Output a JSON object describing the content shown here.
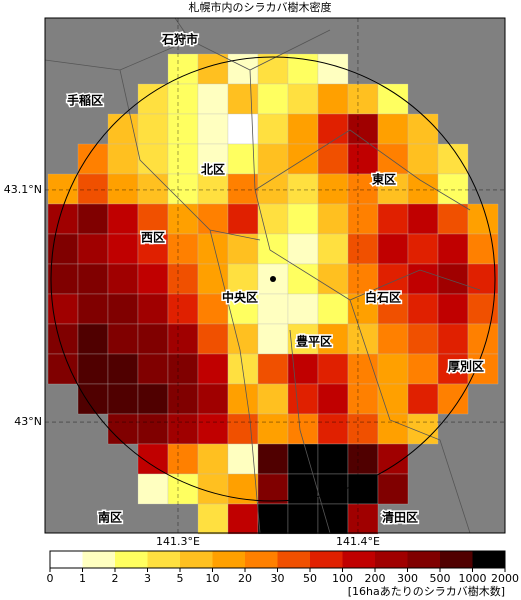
{
  "title": "札幌市内のシラカバ樹木密度",
  "map": {
    "xlim": [
      141.2261,
      141.4817
    ],
    "ylim": [
      42.9522,
      43.1741
    ],
    "xticks": [
      {
        "value": 141.3,
        "label": "141.3°E"
      },
      {
        "value": 141.4,
        "label": "141.4°E"
      }
    ],
    "yticks": [
      {
        "value": 43,
        "label": "43°N"
      },
      {
        "value": 43.1,
        "label": "43.1°N"
      }
    ],
    "labels": [
      "石狩市",
      "手稲区",
      "北区",
      "東区",
      "西区",
      "中央区",
      "白石区",
      "豊平区",
      "厚別区",
      "南区",
      "清田区"
    ],
    "grid": [
      [
        null,
        null,
        null,
        null,
        2,
        5,
        1,
        3,
        2,
        1,
        null,
        null,
        null,
        null,
        null
      ],
      [
        null,
        null,
        null,
        3,
        2,
        1,
        5,
        2,
        3,
        10,
        5,
        2,
        null,
        null,
        null
      ],
      [
        null,
        null,
        5,
        3,
        2,
        1,
        0,
        3,
        10,
        50,
        200,
        10,
        5,
        null,
        null
      ],
      [
        null,
        20,
        5,
        3,
        2,
        1,
        2,
        5,
        10,
        30,
        100,
        20,
        5,
        3,
        null
      ],
      [
        10,
        30,
        10,
        5,
        2,
        3,
        20,
        5,
        3,
        10,
        20,
        5,
        10,
        2,
        null
      ],
      [
        200,
        300,
        100,
        30,
        10,
        20,
        50,
        3,
        2,
        5,
        20,
        50,
        100,
        30,
        10
      ],
      [
        300,
        200,
        100,
        50,
        20,
        10,
        5,
        2,
        1,
        3,
        30,
        100,
        50,
        100,
        20
      ],
      [
        300,
        300,
        200,
        100,
        30,
        10,
        3,
        1,
        2,
        5,
        20,
        50,
        100,
        200,
        50
      ],
      [
        200,
        300,
        300,
        200,
        50,
        20,
        2,
        1,
        1,
        2,
        10,
        30,
        50,
        100,
        30
      ],
      [
        300,
        500,
        300,
        300,
        200,
        30,
        5,
        1,
        3,
        10,
        5,
        20,
        30,
        50,
        20
      ],
      [
        300,
        500,
        500,
        300,
        300,
        100,
        3,
        30,
        100,
        50,
        20,
        10,
        20,
        50,
        20
      ],
      [
        null,
        500,
        500,
        500,
        300,
        200,
        10,
        5,
        50,
        100,
        20,
        10,
        50,
        20,
        null
      ],
      [
        null,
        null,
        300,
        300,
        200,
        100,
        30,
        10,
        20,
        50,
        30,
        10,
        5,
        null,
        null
      ],
      [
        null,
        null,
        null,
        100,
        20,
        5,
        1,
        500,
        1000,
        1000,
        500,
        200,
        null,
        null,
        null
      ],
      [
        null,
        null,
        null,
        1,
        2,
        5,
        10,
        300,
        1000,
        2000,
        1000,
        300,
        null,
        null,
        null
      ],
      [
        null,
        null,
        null,
        null,
        null,
        3,
        100,
        1000,
        2000,
        1000,
        200,
        null,
        null,
        null,
        null
      ]
    ]
  },
  "colorbar": {
    "ticks": [
      0,
      1,
      2,
      3,
      5,
      10,
      20,
      30,
      50,
      100,
      200,
      300,
      500,
      1000,
      2000
    ],
    "colors": [
      "#ffffff",
      "#ffffc0",
      "#ffff60",
      "#ffe040",
      "#ffc020",
      "#ffa000",
      "#ff8000",
      "#f05000",
      "#e02000",
      "#c00000",
      "#a00000",
      "#800000",
      "#500000",
      "#000000"
    ],
    "label": "[16haあたりのシラカバ樹木数]"
  }
}
